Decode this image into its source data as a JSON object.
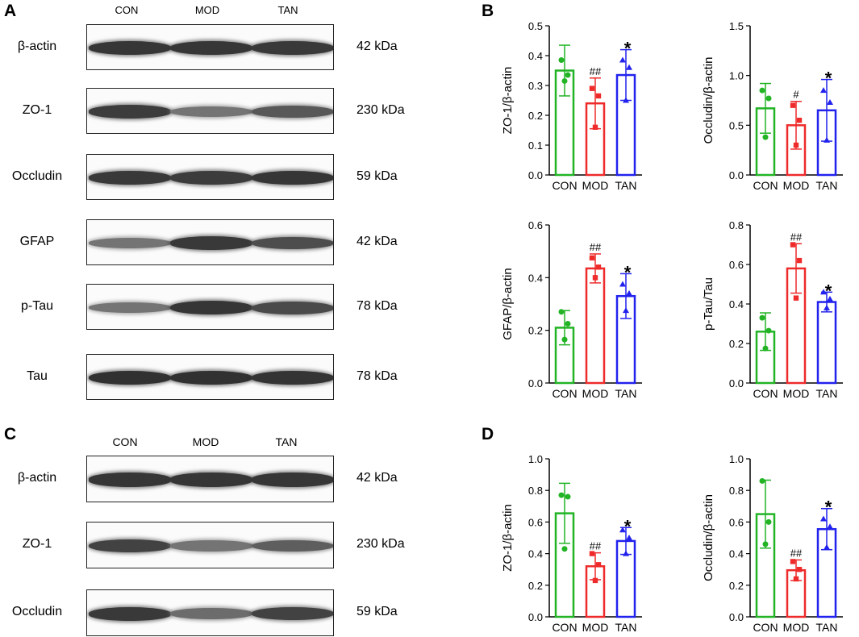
{
  "panels": {
    "A": {
      "letter": "A",
      "lanes": [
        "CON",
        "MOD",
        "TAN"
      ],
      "blots": [
        {
          "name": "β-actin",
          "kda": "42 kDa",
          "intensity": [
            0.92,
            0.92,
            0.9
          ]
        },
        {
          "name": "ZO-1",
          "kda": "230 kDa",
          "intensity": [
            0.88,
            0.55,
            0.72
          ]
        },
        {
          "name": "Occludin",
          "kda": "59 kDa",
          "intensity": [
            0.9,
            0.88,
            0.92
          ]
        },
        {
          "name": "GFAP",
          "kda": "42 kDa",
          "intensity": [
            0.55,
            0.9,
            0.78
          ]
        },
        {
          "name": "p-Tau",
          "kda": "78 kDa",
          "intensity": [
            0.55,
            0.92,
            0.8
          ]
        },
        {
          "name": "Tau",
          "kda": "78 kDa",
          "intensity": [
            0.95,
            0.95,
            0.93
          ]
        }
      ]
    },
    "C": {
      "letter": "C",
      "lanes": [
        "CON",
        "MOD",
        "TAN"
      ],
      "blots": [
        {
          "name": "β-actin",
          "kda": "42 kDa",
          "intensity": [
            0.92,
            0.92,
            0.92
          ]
        },
        {
          "name": "ZO-1",
          "kda": "230 kDa",
          "intensity": [
            0.85,
            0.55,
            0.68
          ]
        },
        {
          "name": "Occludin",
          "kda": "59 kDa",
          "intensity": [
            0.9,
            0.6,
            0.85
          ]
        }
      ]
    },
    "B": {
      "letter": "B"
    },
    "D": {
      "letter": "D"
    }
  },
  "colors": {
    "CON": "#22b425",
    "MOD": "#ee2a2a",
    "TAN": "#2222ee"
  },
  "chart_data": [
    {
      "panel": "B",
      "type": "bar",
      "categories": [
        "CON",
        "MOD",
        "TAN"
      ],
      "ylabel": "ZO-1/β-actin",
      "ylim": [
        0,
        0.5
      ],
      "ticks": [
        "0.0",
        "0.1",
        "0.2",
        "0.3",
        "0.4",
        "0.5"
      ],
      "values": [
        0.35,
        0.24,
        0.335
      ],
      "errors": [
        0.085,
        0.085,
        0.085
      ],
      "points": [
        [
          0.385,
          0.335,
          0.315
        ],
        [
          0.29,
          0.265,
          0.16
        ],
        [
          0.385,
          0.36,
          0.25
        ]
      ],
      "annotations": [
        "",
        "##",
        "*"
      ]
    },
    {
      "panel": "B",
      "type": "bar",
      "categories": [
        "CON",
        "MOD",
        "TAN"
      ],
      "ylabel": "Occludin/β-actin",
      "ylim": [
        0,
        1.5
      ],
      "ticks": [
        "0.0",
        "0.5",
        "1.0",
        "1.5"
      ],
      "values": [
        0.67,
        0.5,
        0.65
      ],
      "errors": [
        0.25,
        0.24,
        0.31
      ],
      "points": [
        [
          0.85,
          0.77,
          0.38
        ],
        [
          0.7,
          0.55,
          0.3
        ],
        [
          0.85,
          0.73,
          0.35
        ]
      ],
      "annotations": [
        "",
        "#",
        "*"
      ]
    },
    {
      "panel": "B",
      "type": "bar",
      "categories": [
        "CON",
        "MOD",
        "TAN"
      ],
      "ylabel": "GFAP/β-actin",
      "ylim": [
        0,
        0.6
      ],
      "ticks": [
        "0.0",
        "0.2",
        "0.4",
        "0.6"
      ],
      "values": [
        0.21,
        0.435,
        0.33
      ],
      "errors": [
        0.065,
        0.055,
        0.085
      ],
      "points": [
        [
          0.27,
          0.225,
          0.165
        ],
        [
          0.475,
          0.44,
          0.4
        ],
        [
          0.375,
          0.34,
          0.275
        ]
      ],
      "annotations": [
        "",
        "##",
        "*"
      ]
    },
    {
      "panel": "B",
      "type": "bar",
      "categories": [
        "CON",
        "MOD",
        "TAN"
      ],
      "ylabel": "p-Tau/Tau",
      "ylim": [
        0,
        0.8
      ],
      "ticks": [
        "0.0",
        "0.2",
        "0.4",
        "0.6",
        "0.8"
      ],
      "values": [
        0.26,
        0.58,
        0.41
      ],
      "errors": [
        0.095,
        0.125,
        0.05
      ],
      "points": [
        [
          0.33,
          0.265,
          0.175
        ],
        [
          0.7,
          0.62,
          0.43
        ],
        [
          0.46,
          0.425,
          0.38
        ]
      ],
      "annotations": [
        "",
        "##",
        "*"
      ]
    },
    {
      "panel": "D",
      "type": "bar",
      "categories": [
        "CON",
        "MOD",
        "TAN"
      ],
      "ylabel": "ZO-1/β-actin",
      "ylim": [
        0,
        1.0
      ],
      "ticks": [
        "0.0",
        "0.2",
        "0.4",
        "0.6",
        "0.8",
        "1.0"
      ],
      "values": [
        0.655,
        0.32,
        0.48
      ],
      "errors": [
        0.19,
        0.085,
        0.085
      ],
      "points": [
        [
          0.77,
          0.76,
          0.43
        ],
        [
          0.4,
          0.33,
          0.23
        ],
        [
          0.55,
          0.5,
          0.4
        ]
      ],
      "annotations": [
        "",
        "##",
        "*"
      ]
    },
    {
      "panel": "D",
      "type": "bar",
      "categories": [
        "CON",
        "MOD",
        "TAN"
      ],
      "ylabel": "Occludin/β-actin",
      "ylim": [
        0,
        1.0
      ],
      "ticks": [
        "0.0",
        "0.2",
        "0.4",
        "0.6",
        "0.8",
        "1.0"
      ],
      "values": [
        0.65,
        0.295,
        0.555
      ],
      "errors": [
        0.215,
        0.065,
        0.13
      ],
      "points": [
        [
          0.86,
          0.6,
          0.46
        ],
        [
          0.35,
          0.3,
          0.24
        ],
        [
          0.62,
          0.57,
          0.44
        ]
      ],
      "annotations": [
        "",
        "##",
        "*"
      ]
    }
  ]
}
